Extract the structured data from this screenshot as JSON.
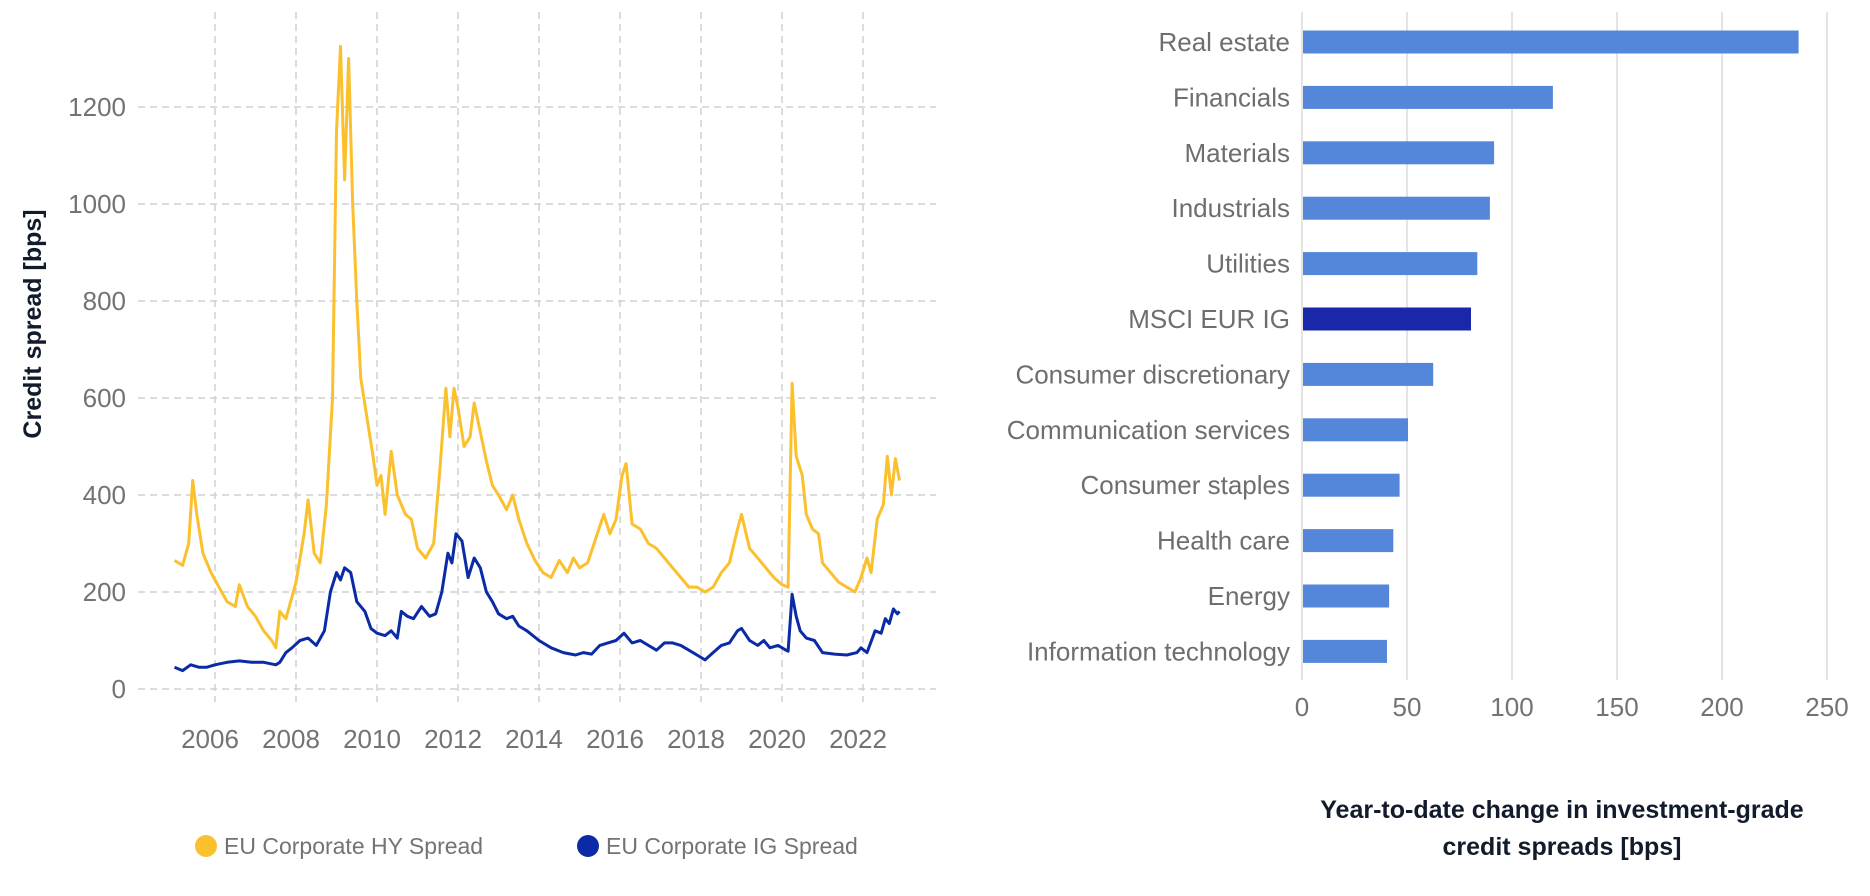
{
  "chart_data": [
    {
      "type": "line",
      "ylabel": "Credit spread [bps]",
      "xlabel": "",
      "ylim": [
        0,
        1350
      ],
      "xlim": [
        2005,
        2023.2
      ],
      "yticks": [
        "0",
        "200",
        "400",
        "600",
        "800",
        "1000",
        "1200"
      ],
      "xticks": [
        "2006",
        "2008",
        "2010",
        "2012",
        "2014",
        "2016",
        "2018",
        "2020",
        "2022"
      ],
      "grid": true,
      "legend_position": "bottom",
      "series": [
        {
          "name": "EU Corporate HY Spread",
          "color": "#FBC02D",
          "points": [
            [
              2005.0,
              265
            ],
            [
              2005.2,
              255
            ],
            [
              2005.35,
              300
            ],
            [
              2005.45,
              430
            ],
            [
              2005.55,
              360
            ],
            [
              2005.7,
              280
            ],
            [
              2005.9,
              240
            ],
            [
              2006.1,
              210
            ],
            [
              2006.3,
              180
            ],
            [
              2006.5,
              170
            ],
            [
              2006.6,
              215
            ],
            [
              2006.8,
              170
            ],
            [
              2007.0,
              150
            ],
            [
              2007.2,
              120
            ],
            [
              2007.4,
              100
            ],
            [
              2007.5,
              85
            ],
            [
              2007.6,
              160
            ],
            [
              2007.75,
              145
            ],
            [
              2007.9,
              190
            ],
            [
              2008.0,
              220
            ],
            [
              2008.2,
              320
            ],
            [
              2008.3,
              390
            ],
            [
              2008.45,
              280
            ],
            [
              2008.6,
              260
            ],
            [
              2008.75,
              380
            ],
            [
              2008.9,
              600
            ],
            [
              2009.0,
              1150
            ],
            [
              2009.1,
              1325
            ],
            [
              2009.2,
              1050
            ],
            [
              2009.3,
              1300
            ],
            [
              2009.4,
              1000
            ],
            [
              2009.5,
              800
            ],
            [
              2009.6,
              640
            ],
            [
              2009.75,
              560
            ],
            [
              2009.9,
              480
            ],
            [
              2010.0,
              420
            ],
            [
              2010.1,
              440
            ],
            [
              2010.2,
              360
            ],
            [
              2010.35,
              490
            ],
            [
              2010.5,
              400
            ],
            [
              2010.7,
              360
            ],
            [
              2010.85,
              350
            ],
            [
              2011.0,
              290
            ],
            [
              2011.2,
              270
            ],
            [
              2011.4,
              300
            ],
            [
              2011.55,
              450
            ],
            [
              2011.7,
              620
            ],
            [
              2011.8,
              520
            ],
            [
              2011.9,
              620
            ],
            [
              2012.0,
              580
            ],
            [
              2012.15,
              500
            ],
            [
              2012.3,
              520
            ],
            [
              2012.4,
              590
            ],
            [
              2012.55,
              530
            ],
            [
              2012.7,
              470
            ],
            [
              2012.85,
              420
            ],
            [
              2013.0,
              400
            ],
            [
              2013.2,
              370
            ],
            [
              2013.35,
              400
            ],
            [
              2013.5,
              350
            ],
            [
              2013.7,
              300
            ],
            [
              2013.9,
              265
            ],
            [
              2014.1,
              240
            ],
            [
              2014.3,
              230
            ],
            [
              2014.5,
              265
            ],
            [
              2014.7,
              240
            ],
            [
              2014.85,
              270
            ],
            [
              2015.0,
              250
            ],
            [
              2015.2,
              260
            ],
            [
              2015.4,
              310
            ],
            [
              2015.6,
              360
            ],
            [
              2015.75,
              320
            ],
            [
              2015.9,
              350
            ],
            [
              2016.05,
              440
            ],
            [
              2016.15,
              465
            ],
            [
              2016.3,
              340
            ],
            [
              2016.5,
              330
            ],
            [
              2016.7,
              300
            ],
            [
              2016.9,
              290
            ],
            [
              2017.1,
              270
            ],
            [
              2017.3,
              250
            ],
            [
              2017.5,
              230
            ],
            [
              2017.7,
              210
            ],
            [
              2017.9,
              210
            ],
            [
              2018.1,
              200
            ],
            [
              2018.3,
              210
            ],
            [
              2018.5,
              240
            ],
            [
              2018.7,
              260
            ],
            [
              2018.9,
              330
            ],
            [
              2019.0,
              360
            ],
            [
              2019.2,
              290
            ],
            [
              2019.4,
              270
            ],
            [
              2019.6,
              250
            ],
            [
              2019.8,
              230
            ],
            [
              2020.0,
              215
            ],
            [
              2020.15,
              210
            ],
            [
              2020.25,
              630
            ],
            [
              2020.35,
              480
            ],
            [
              2020.5,
              440
            ],
            [
              2020.6,
              360
            ],
            [
              2020.75,
              330
            ],
            [
              2020.9,
              320
            ],
            [
              2021.0,
              260
            ],
            [
              2021.2,
              240
            ],
            [
              2021.4,
              220
            ],
            [
              2021.6,
              210
            ],
            [
              2021.8,
              200
            ],
            [
              2021.95,
              230
            ],
            [
              2022.1,
              270
            ],
            [
              2022.2,
              240
            ],
            [
              2022.35,
              350
            ],
            [
              2022.5,
              380
            ],
            [
              2022.6,
              480
            ],
            [
              2022.7,
              400
            ],
            [
              2022.8,
              475
            ],
            [
              2022.9,
              430
            ]
          ]
        },
        {
          "name": "EU Corporate IG Spread",
          "color": "#0A2AA6",
          "points": [
            [
              2005.0,
              45
            ],
            [
              2005.2,
              38
            ],
            [
              2005.4,
              50
            ],
            [
              2005.6,
              45
            ],
            [
              2005.8,
              45
            ],
            [
              2006.0,
              50
            ],
            [
              2006.3,
              55
            ],
            [
              2006.6,
              58
            ],
            [
              2006.9,
              55
            ],
            [
              2007.2,
              55
            ],
            [
              2007.5,
              50
            ],
            [
              2007.6,
              55
            ],
            [
              2007.75,
              75
            ],
            [
              2007.9,
              85
            ],
            [
              2008.1,
              100
            ],
            [
              2008.3,
              105
            ],
            [
              2008.5,
              90
            ],
            [
              2008.7,
              120
            ],
            [
              2008.85,
              200
            ],
            [
              2009.0,
              240
            ],
            [
              2009.1,
              225
            ],
            [
              2009.2,
              250
            ],
            [
              2009.35,
              240
            ],
            [
              2009.5,
              180
            ],
            [
              2009.7,
              160
            ],
            [
              2009.85,
              125
            ],
            [
              2010.0,
              115
            ],
            [
              2010.2,
              110
            ],
            [
              2010.35,
              120
            ],
            [
              2010.5,
              105
            ],
            [
              2010.6,
              160
            ],
            [
              2010.75,
              150
            ],
            [
              2010.9,
              145
            ],
            [
              2011.1,
              170
            ],
            [
              2011.3,
              150
            ],
            [
              2011.45,
              155
            ],
            [
              2011.6,
              200
            ],
            [
              2011.75,
              280
            ],
            [
              2011.85,
              260
            ],
            [
              2011.95,
              320
            ],
            [
              2012.1,
              305
            ],
            [
              2012.25,
              230
            ],
            [
              2012.4,
              270
            ],
            [
              2012.55,
              250
            ],
            [
              2012.7,
              200
            ],
            [
              2012.85,
              180
            ],
            [
              2013.0,
              155
            ],
            [
              2013.2,
              145
            ],
            [
              2013.35,
              150
            ],
            [
              2013.5,
              130
            ],
            [
              2013.7,
              120
            ],
            [
              2014.0,
              100
            ],
            [
              2014.3,
              85
            ],
            [
              2014.6,
              75
            ],
            [
              2014.9,
              70
            ],
            [
              2015.1,
              75
            ],
            [
              2015.3,
              72
            ],
            [
              2015.5,
              90
            ],
            [
              2015.7,
              95
            ],
            [
              2015.9,
              100
            ],
            [
              2016.1,
              115
            ],
            [
              2016.3,
              95
            ],
            [
              2016.5,
              100
            ],
            [
              2016.7,
              90
            ],
            [
              2016.9,
              80
            ],
            [
              2017.1,
              95
            ],
            [
              2017.3,
              95
            ],
            [
              2017.5,
              90
            ],
            [
              2017.7,
              80
            ],
            [
              2017.9,
              70
            ],
            [
              2018.1,
              60
            ],
            [
              2018.3,
              75
            ],
            [
              2018.5,
              90
            ],
            [
              2018.7,
              95
            ],
            [
              2018.9,
              120
            ],
            [
              2019.0,
              125
            ],
            [
              2019.2,
              100
            ],
            [
              2019.4,
              90
            ],
            [
              2019.55,
              100
            ],
            [
              2019.7,
              85
            ],
            [
              2019.9,
              90
            ],
            [
              2020.1,
              80
            ],
            [
              2020.15,
              78
            ],
            [
              2020.25,
              195
            ],
            [
              2020.35,
              150
            ],
            [
              2020.45,
              120
            ],
            [
              2020.6,
              105
            ],
            [
              2020.8,
              100
            ],
            [
              2021.0,
              75
            ],
            [
              2021.3,
              72
            ],
            [
              2021.6,
              70
            ],
            [
              2021.85,
              75
            ],
            [
              2021.95,
              85
            ],
            [
              2022.1,
              75
            ],
            [
              2022.3,
              120
            ],
            [
              2022.45,
              115
            ],
            [
              2022.55,
              145
            ],
            [
              2022.65,
              135
            ],
            [
              2022.75,
              165
            ],
            [
              2022.85,
              155
            ],
            [
              2022.9,
              160
            ]
          ]
        }
      ]
    },
    {
      "type": "bar",
      "orientation": "horizontal",
      "xlabel": "Year-to-date change in investment-grade credit spreads [bps]",
      "xlabel_lines": [
        "Year-to-date change in investment-grade",
        "credit spreads [bps]"
      ],
      "xlim": [
        0,
        250
      ],
      "xticks": [
        "0",
        "50",
        "100",
        "150",
        "200",
        "250"
      ],
      "grid": true,
      "categories": [
        "Real estate",
        "Financials",
        "Materials",
        "Industrials",
        "Utilities",
        "MSCI EUR IG",
        "Consumer discretionary",
        "Communication services",
        "Consumer staples",
        "Health care",
        "Energy",
        "Information technology"
      ],
      "values": [
        236,
        119,
        91,
        89,
        83,
        80,
        62,
        50,
        46,
        43,
        41,
        40
      ],
      "colors": {
        "default": "#5486DA",
        "highlight": "#1A27A8"
      },
      "highlight": "MSCI EUR IG"
    }
  ]
}
